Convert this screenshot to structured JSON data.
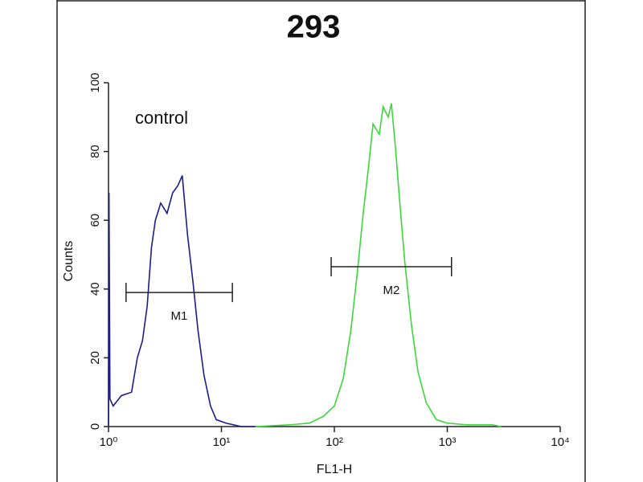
{
  "chart_data": {
    "type": "line",
    "title": "293",
    "xlabel": "FL1-H",
    "ylabel": "Counts",
    "annotation": "control",
    "log_x": true,
    "xlim": [
      1,
      10000
    ],
    "xticks": [
      {
        "value": 1,
        "label": "10⁰"
      },
      {
        "value": 10,
        "label": "10¹"
      },
      {
        "value": 100,
        "label": "10²"
      },
      {
        "value": 1000,
        "label": "10³"
      },
      {
        "value": 10000,
        "label": "10⁴"
      }
    ],
    "ylim": [
      0,
      100
    ],
    "yticks": [
      0,
      20,
      40,
      60,
      80,
      100
    ],
    "series": [
      {
        "color": "#1c1c8a",
        "x": [
          1,
          1.01,
          1.03,
          1.1,
          1.3,
          1.6,
          1.8,
          2.0,
          2.2,
          2.4,
          2.6,
          2.9,
          3.3,
          3.7,
          4.1,
          4.5,
          5.0,
          5.6,
          6.2,
          7.0,
          8.0,
          9.0,
          11,
          15,
          20
        ],
        "values": [
          0,
          68,
          8,
          6,
          9,
          10,
          20,
          25,
          35,
          52,
          60,
          65,
          62,
          68,
          70,
          73,
          56,
          42,
          28,
          15,
          6,
          2,
          1,
          0,
          0
        ]
      },
      {
        "color": "#3ad83a",
        "x": [
          20,
          40,
          60,
          80,
          100,
          120,
          140,
          160,
          180,
          200,
          220,
          250,
          270,
          300,
          320,
          350,
          380,
          420,
          480,
          550,
          650,
          800,
          1000,
          1500,
          2500,
          3000
        ],
        "values": [
          0,
          0.5,
          1,
          3,
          6,
          14,
          28,
          45,
          62,
          75,
          88,
          85,
          93,
          90,
          94,
          80,
          65,
          48,
          30,
          16,
          7,
          2,
          1,
          0.5,
          0.5,
          0
        ]
      }
    ],
    "gates": [
      {
        "label": "M1",
        "range": [
          1.43,
          12.5
        ],
        "level": 39
      },
      {
        "label": "M2",
        "range": [
          93.7,
          1090
        ],
        "level": 46.5
      }
    ]
  }
}
